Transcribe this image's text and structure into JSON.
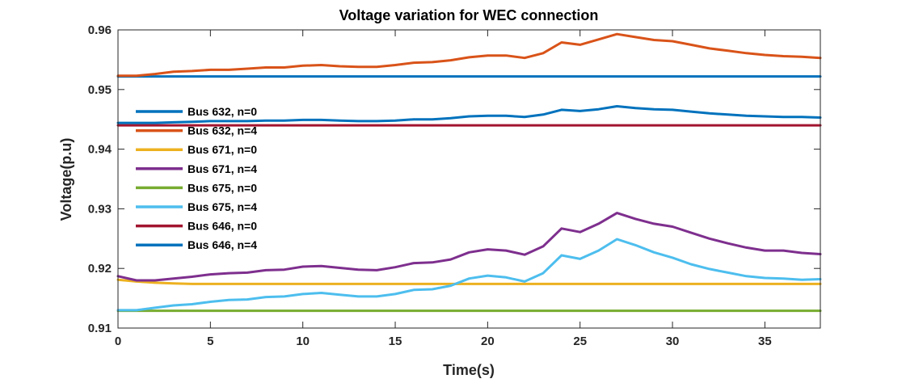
{
  "chart_data": {
    "type": "line",
    "title": "Voltage variation for WEC connection",
    "xlabel": "Time(s)",
    "ylabel": "Voltage(p.u)",
    "xlim": [
      0,
      38
    ],
    "ylim": [
      0.91,
      0.96
    ],
    "xticks": [
      0,
      5,
      10,
      15,
      20,
      25,
      30,
      35
    ],
    "xtick_labels": [
      "0",
      "5",
      "10",
      "15",
      "20",
      "25",
      "30",
      "35"
    ],
    "yticks": [
      0.91,
      0.92,
      0.93,
      0.94,
      0.95,
      0.96
    ],
    "ytick_labels": [
      "0.91",
      "0.92",
      "0.93",
      "0.94",
      "0.95",
      "0.96"
    ],
    "grid": false,
    "legend_position": "left",
    "x": [
      0,
      1,
      2,
      3,
      4,
      5,
      6,
      7,
      8,
      9,
      10,
      11,
      12,
      13,
      14,
      15,
      16,
      17,
      18,
      19,
      20,
      21,
      22,
      23,
      24,
      25,
      26,
      27,
      28,
      29,
      30,
      31,
      32,
      33,
      34,
      35,
      36,
      37,
      38
    ],
    "series": [
      {
        "name": "Bus 632, n=0",
        "color": "#0072BD",
        "values": [
          0.9522,
          0.9522,
          0.9522,
          0.9522,
          0.9522,
          0.9522,
          0.9522,
          0.9522,
          0.9522,
          0.9522,
          0.9522,
          0.9522,
          0.9522,
          0.9522,
          0.9522,
          0.9522,
          0.9522,
          0.9522,
          0.9522,
          0.9522,
          0.9522,
          0.9522,
          0.9522,
          0.9522,
          0.9522,
          0.9522,
          0.9522,
          0.9522,
          0.9522,
          0.9522,
          0.9522,
          0.9522,
          0.9522,
          0.9522,
          0.9522,
          0.9522,
          0.9522,
          0.9522,
          0.9522
        ]
      },
      {
        "name": "Bus 632, n=4",
        "color": "#D95319",
        "values": [
          0.9523,
          0.9523,
          0.9526,
          0.953,
          0.9531,
          0.9533,
          0.9533,
          0.9535,
          0.9537,
          0.9537,
          0.954,
          0.9541,
          0.9539,
          0.9538,
          0.9538,
          0.9541,
          0.9545,
          0.9546,
          0.9549,
          0.9554,
          0.9557,
          0.9557,
          0.9553,
          0.9561,
          0.9579,
          0.9575,
          0.9584,
          0.9593,
          0.9588,
          0.9583,
          0.9581,
          0.9575,
          0.9569,
          0.9565,
          0.9561,
          0.9558,
          0.9556,
          0.9555,
          0.9553
        ]
      },
      {
        "name": "Bus 671, n=0",
        "color": "#EDB120",
        "values": [
          0.9181,
          0.9178,
          0.9176,
          0.9175,
          0.9174,
          0.9174,
          0.9174,
          0.9174,
          0.9174,
          0.9174,
          0.9174,
          0.9174,
          0.9174,
          0.9174,
          0.9174,
          0.9174,
          0.9174,
          0.9174,
          0.9174,
          0.9174,
          0.9174,
          0.9174,
          0.9174,
          0.9174,
          0.9174,
          0.9174,
          0.9174,
          0.9174,
          0.9174,
          0.9174,
          0.9174,
          0.9174,
          0.9174,
          0.9174,
          0.9174,
          0.9174,
          0.9174,
          0.9174,
          0.9174
        ]
      },
      {
        "name": "Bus 671, n=4",
        "color": "#7E2F8E",
        "values": [
          0.9187,
          0.918,
          0.918,
          0.9183,
          0.9186,
          0.919,
          0.9192,
          0.9193,
          0.9197,
          0.9198,
          0.9203,
          0.9204,
          0.9201,
          0.9198,
          0.9197,
          0.9202,
          0.9209,
          0.921,
          0.9215,
          0.9227,
          0.9232,
          0.923,
          0.9223,
          0.9237,
          0.9267,
          0.9261,
          0.9275,
          0.9293,
          0.9283,
          0.9275,
          0.927,
          0.926,
          0.925,
          0.9242,
          0.9235,
          0.923,
          0.923,
          0.9226,
          0.9224
        ]
      },
      {
        "name": "Bus 675, n=0",
        "color": "#77AC30",
        "values": [
          0.9129,
          0.9129,
          0.9129,
          0.9129,
          0.9129,
          0.9129,
          0.9129,
          0.9129,
          0.9129,
          0.9129,
          0.9129,
          0.9129,
          0.9129,
          0.9129,
          0.9129,
          0.9129,
          0.9129,
          0.9129,
          0.9129,
          0.9129,
          0.9129,
          0.9129,
          0.9129,
          0.9129,
          0.9129,
          0.9129,
          0.9129,
          0.9129,
          0.9129,
          0.9129,
          0.9129,
          0.9129,
          0.9129,
          0.9129,
          0.9129,
          0.9129,
          0.9129,
          0.9129,
          0.9129
        ]
      },
      {
        "name": "Bus 675, n=4",
        "color": "#4DBEEE",
        "values": [
          0.913,
          0.913,
          0.9134,
          0.9138,
          0.914,
          0.9144,
          0.9147,
          0.9148,
          0.9152,
          0.9153,
          0.9157,
          0.9159,
          0.9156,
          0.9153,
          0.9153,
          0.9157,
          0.9164,
          0.9165,
          0.9171,
          0.9183,
          0.9188,
          0.9185,
          0.9178,
          0.9192,
          0.9222,
          0.9216,
          0.923,
          0.9249,
          0.9239,
          0.9227,
          0.9218,
          0.9207,
          0.9199,
          0.9193,
          0.9187,
          0.9184,
          0.9183,
          0.9181,
          0.9182
        ]
      },
      {
        "name": "Bus 646, n=0",
        "color": "#A2142F",
        "values": [
          0.944,
          0.944,
          0.944,
          0.944,
          0.944,
          0.944,
          0.944,
          0.944,
          0.944,
          0.944,
          0.944,
          0.944,
          0.944,
          0.944,
          0.944,
          0.944,
          0.944,
          0.944,
          0.944,
          0.944,
          0.944,
          0.944,
          0.944,
          0.944,
          0.944,
          0.944,
          0.944,
          0.944,
          0.944,
          0.944,
          0.944,
          0.944,
          0.944,
          0.944,
          0.944,
          0.944,
          0.944,
          0.944,
          0.944
        ]
      },
      {
        "name": "Bus 646, n=4",
        "color": "#0072BD",
        "values": [
          0.9444,
          0.9444,
          0.9444,
          0.9445,
          0.9446,
          0.9447,
          0.9447,
          0.9447,
          0.9448,
          0.9448,
          0.9449,
          0.9449,
          0.9448,
          0.9447,
          0.9447,
          0.9448,
          0.945,
          0.945,
          0.9452,
          0.9455,
          0.9456,
          0.9456,
          0.9454,
          0.9458,
          0.9466,
          0.9464,
          0.9467,
          0.9472,
          0.9469,
          0.9467,
          0.9466,
          0.9463,
          0.946,
          0.9458,
          0.9456,
          0.9455,
          0.9454,
          0.9454,
          0.9453
        ]
      }
    ]
  }
}
